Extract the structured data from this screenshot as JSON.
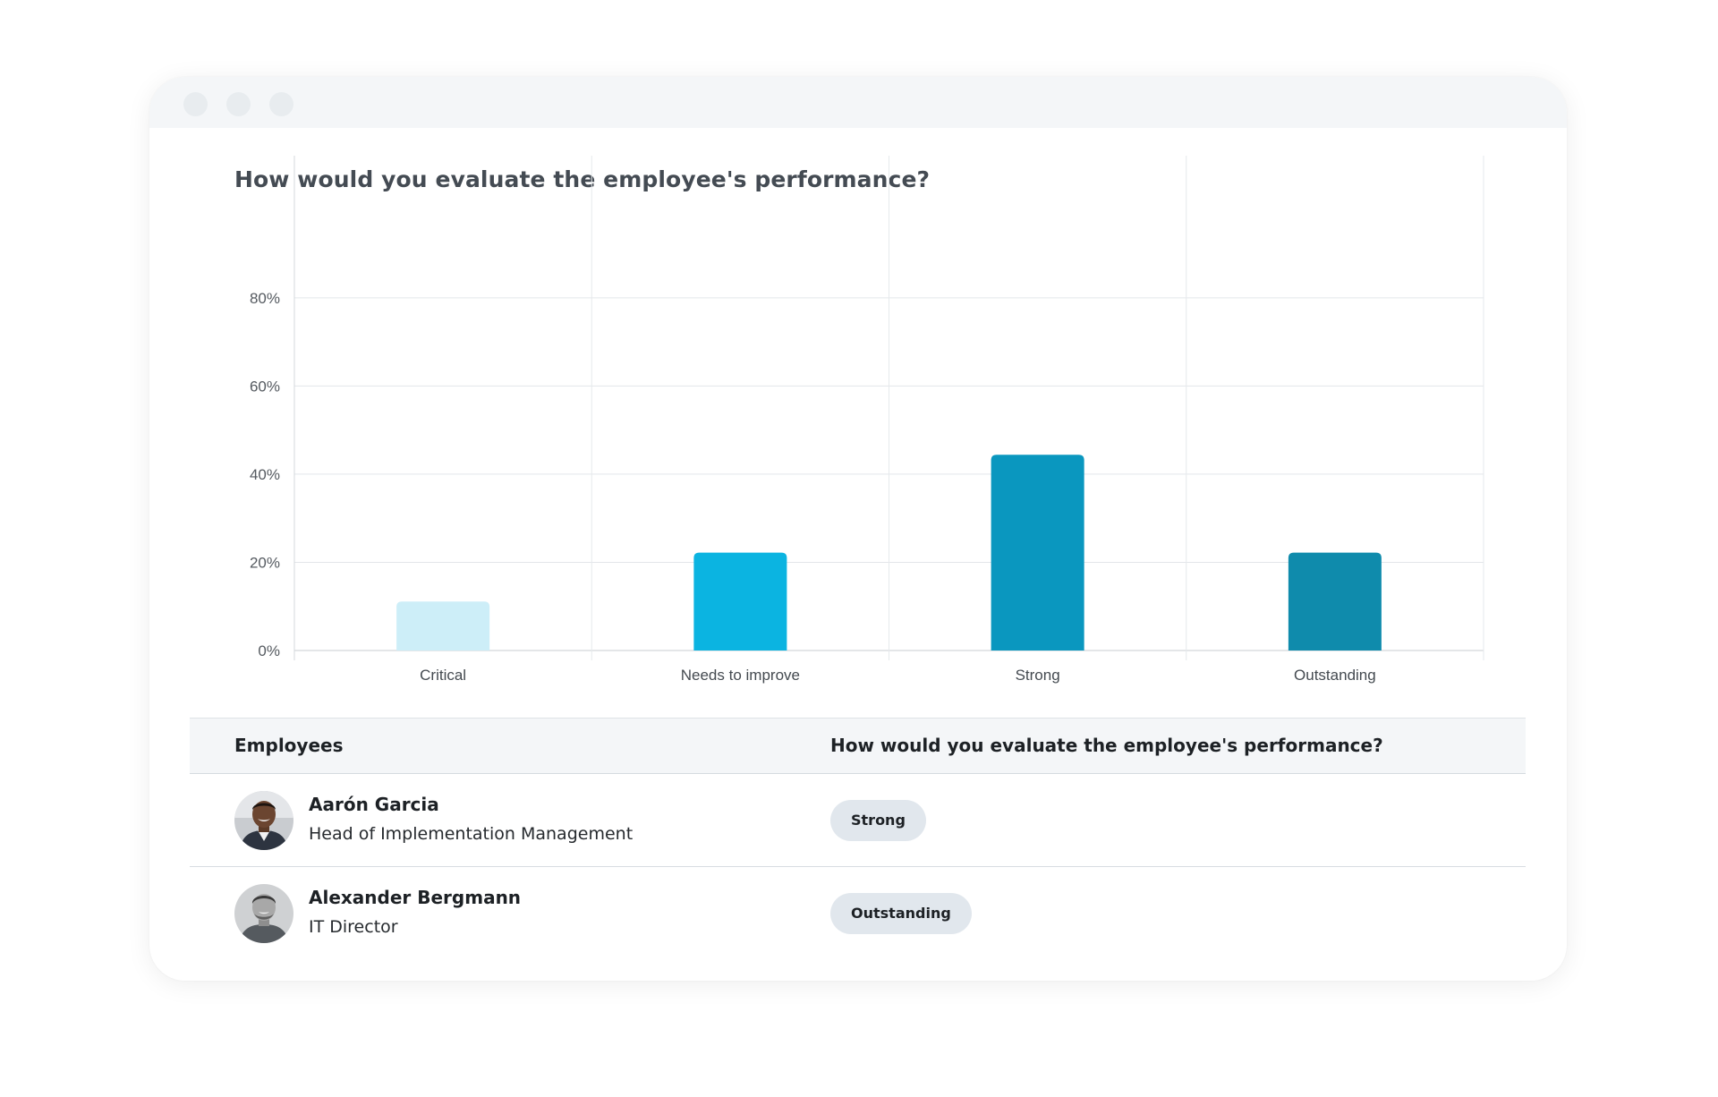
{
  "chart_data": {
    "type": "bar",
    "title": "How would you evaluate the employee's performance?",
    "categories": [
      "Critical",
      "Needs to improve",
      "Strong",
      "Outstanding"
    ],
    "values": [
      11.1,
      22.2,
      44.4,
      22.2
    ],
    "colors": [
      "#cdeef8",
      "#0bb4e1",
      "#0a97bf",
      "#0f8bac"
    ],
    "ylim": [
      0,
      96
    ],
    "yticks": [
      0,
      20,
      40,
      60,
      80
    ],
    "ytick_labels": [
      "0%",
      "20%",
      "40%",
      "60%",
      "80%"
    ],
    "grid": true
  },
  "table": {
    "col_employees": "Employees",
    "col_question": "How would you evaluate the employee's performance?",
    "rows": [
      {
        "name": "Aarón Garcia",
        "role": "Head of Implementation Management",
        "rating": "Strong",
        "avatar": "avatar-photo-icon"
      },
      {
        "name": "Alexander Bergmann",
        "role": "IT Director",
        "rating": "Outstanding",
        "avatar": "avatar-photo-icon"
      }
    ]
  },
  "colors": {
    "titlebar": "#f4f6f8",
    "badge": "#e1e7ed"
  }
}
